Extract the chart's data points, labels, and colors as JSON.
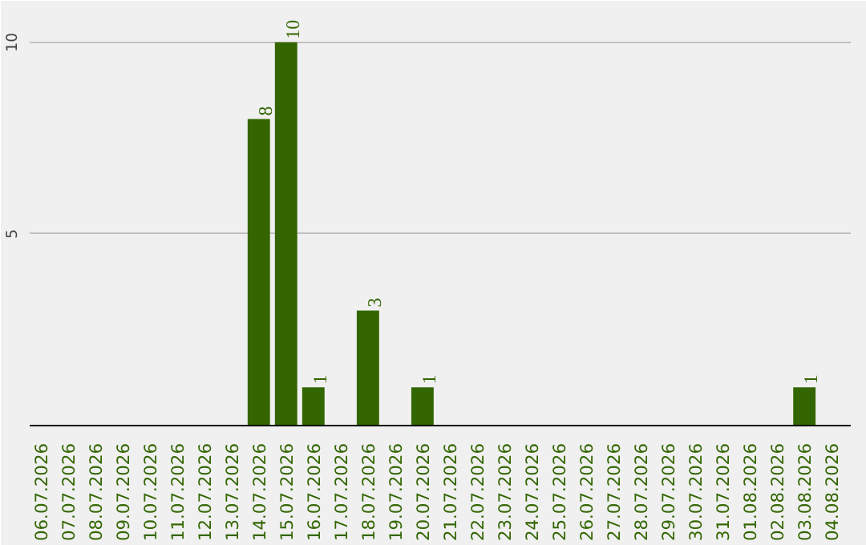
{
  "chart_data": {
    "type": "bar",
    "categories": [
      "06.07.2026",
      "07.07.2026",
      "08.07.2026",
      "09.07.2026",
      "10.07.2026",
      "11.07.2026",
      "12.07.2026",
      "13.07.2026",
      "14.07.2026",
      "15.07.2026",
      "16.07.2026",
      "17.07.2026",
      "18.07.2026",
      "19.07.2026",
      "20.07.2026",
      "21.07.2026",
      "22.07.2026",
      "23.07.2026",
      "24.07.2026",
      "25.07.2026",
      "26.07.2026",
      "27.07.2026",
      "28.07.2026",
      "29.07.2026",
      "30.07.2026",
      "31.07.2026",
      "01.08.2026",
      "02.08.2026",
      "03.08.2026",
      "04.08.2026"
    ],
    "values": [
      0,
      0,
      0,
      0,
      0,
      0,
      0,
      0,
      8,
      10,
      1,
      0,
      3,
      0,
      1,
      0,
      0,
      0,
      0,
      0,
      0,
      0,
      0,
      0,
      0,
      0,
      0,
      0,
      1,
      0
    ],
    "value_labels": [
      null,
      null,
      null,
      null,
      null,
      null,
      null,
      null,
      "8",
      "10",
      "1",
      null,
      "3",
      null,
      "1",
      null,
      null,
      null,
      null,
      null,
      null,
      null,
      null,
      null,
      null,
      null,
      null,
      null,
      "1",
      null
    ],
    "color": "#336600",
    "ylim": [
      0,
      11
    ],
    "yticks": [
      5,
      10
    ],
    "grid": "y"
  }
}
